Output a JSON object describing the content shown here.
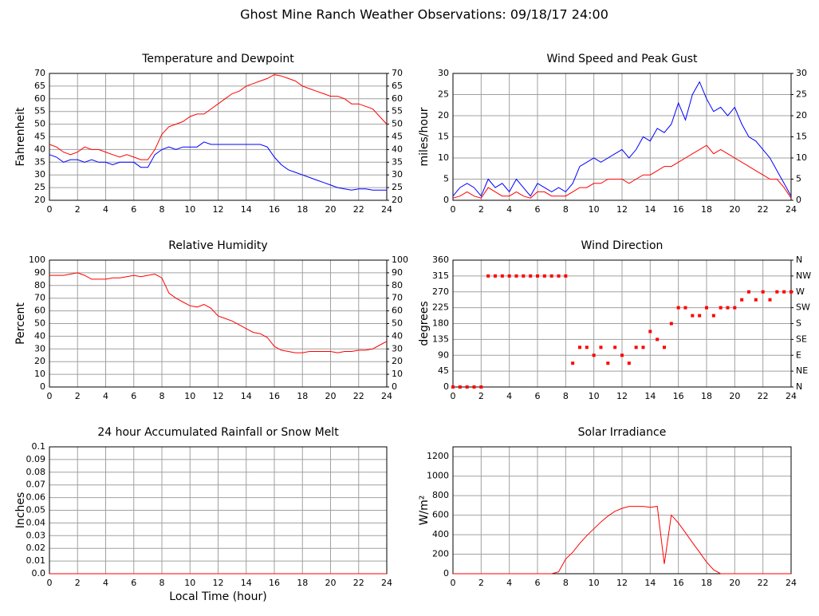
{
  "title": "Ghost Mine Ranch Weather Observations: 09/18/17 24:00",
  "chart_data": [
    {
      "type": "line",
      "title": "Temperature and Dewpoint",
      "ylabel": "Fahrenheit",
      "x": [
        0,
        0.5,
        1,
        1.5,
        2,
        2.5,
        3,
        3.5,
        4,
        4.5,
        5,
        5.5,
        6,
        6.5,
        7,
        7.5,
        8,
        8.5,
        9,
        9.5,
        10,
        10.5,
        11,
        11.5,
        12,
        12.5,
        13,
        13.5,
        14,
        14.5,
        15,
        15.5,
        16,
        16.5,
        17,
        17.5,
        18,
        18.5,
        19,
        19.5,
        20,
        20.5,
        21,
        21.5,
        22,
        22.5,
        23,
        23.5,
        24
      ],
      "xlim": [
        0,
        24
      ],
      "xticks": [
        0,
        2,
        4,
        6,
        8,
        10,
        12,
        14,
        16,
        18,
        20,
        22,
        24
      ],
      "ylim": [
        20,
        70
      ],
      "yticks": [
        20,
        25,
        30,
        35,
        40,
        45,
        50,
        55,
        60,
        65,
        70
      ],
      "y2lim": [
        20,
        70
      ],
      "y2ticks": [
        20,
        25,
        30,
        35,
        40,
        45,
        50,
        55,
        60,
        65,
        70
      ],
      "grid": true,
      "series": [
        {
          "color": "#ff0000",
          "values": [
            42,
            41,
            39,
            38,
            39,
            41,
            40,
            40,
            39,
            38,
            37,
            38,
            37,
            36,
            36,
            40,
            46,
            49,
            50,
            51,
            53,
            54,
            54,
            56,
            58,
            60,
            62,
            63,
            65,
            66,
            67,
            68,
            69.5,
            69,
            68,
            67,
            65,
            64,
            63,
            62,
            61,
            61,
            60,
            58,
            58,
            57,
            56,
            53,
            50
          ]
        },
        {
          "color": "#0000ff",
          "values": [
            38,
            37,
            35,
            36,
            36,
            35,
            36,
            35,
            35,
            34,
            35,
            35,
            35,
            33,
            33,
            38,
            40,
            41,
            40,
            41,
            41,
            41,
            43,
            42,
            42,
            42,
            42,
            42,
            42,
            42,
            42,
            41,
            37,
            34,
            32,
            31,
            30,
            29,
            28,
            27,
            26,
            25,
            24.5,
            24,
            24.5,
            24.5,
            24,
            24,
            24
          ]
        }
      ]
    },
    {
      "type": "line",
      "title": "Wind Speed and Peak Gust",
      "ylabel": "miles/hour",
      "x": [
        0,
        0.5,
        1,
        1.5,
        2,
        2.5,
        3,
        3.5,
        4,
        4.5,
        5,
        5.5,
        6,
        6.5,
        7,
        7.5,
        8,
        8.5,
        9,
        9.5,
        10,
        10.5,
        11,
        11.5,
        12,
        12.5,
        13,
        13.5,
        14,
        14.5,
        15,
        15.5,
        16,
        16.5,
        17,
        17.5,
        18,
        18.5,
        19,
        19.5,
        20,
        20.5,
        21,
        21.5,
        22,
        22.5,
        23,
        23.5,
        24
      ],
      "xlim": [
        0,
        24
      ],
      "xticks": [
        0,
        2,
        4,
        6,
        8,
        10,
        12,
        14,
        16,
        18,
        20,
        22,
        24
      ],
      "ylim": [
        0,
        30
      ],
      "yticks": [
        0,
        5,
        10,
        15,
        20,
        25,
        30
      ],
      "y2lim": [
        0,
        30
      ],
      "y2ticks": [
        0,
        5,
        10,
        15,
        20,
        25,
        30
      ],
      "grid": true,
      "series": [
        {
          "color": "#0000ff",
          "values": [
            1,
            3,
            4,
            3,
            1,
            5,
            3,
            4,
            2,
            5,
            3,
            1,
            4,
            3,
            2,
            3,
            2,
            4,
            8,
            9,
            10,
            9,
            10,
            11,
            12,
            10,
            12,
            15,
            14,
            17,
            16,
            18,
            23,
            19,
            25,
            28,
            24,
            21,
            22,
            20,
            22,
            18,
            15,
            14,
            12,
            10,
            7,
            4,
            1
          ]
        },
        {
          "color": "#ff0000",
          "values": [
            0.5,
            1,
            2,
            1,
            0.5,
            3,
            2,
            1,
            1,
            2,
            1,
            0.5,
            2,
            2,
            1,
            1,
            1,
            2,
            3,
            3,
            4,
            4,
            5,
            5,
            5,
            4,
            5,
            6,
            6,
            7,
            8,
            8,
            9,
            10,
            11,
            12,
            13,
            11,
            12,
            11,
            10,
            9,
            8,
            7,
            6,
            5,
            5,
            3,
            0.5
          ]
        }
      ]
    },
    {
      "type": "line",
      "title": "Relative Humidity",
      "ylabel": "Percent",
      "x": [
        0,
        0.5,
        1,
        1.5,
        2,
        2.5,
        3,
        3.5,
        4,
        4.5,
        5,
        5.5,
        6,
        6.5,
        7,
        7.5,
        8,
        8.5,
        9,
        9.5,
        10,
        10.5,
        11,
        11.5,
        12,
        12.5,
        13,
        13.5,
        14,
        14.5,
        15,
        15.5,
        16,
        16.5,
        17,
        17.5,
        18,
        18.5,
        19,
        19.5,
        20,
        20.5,
        21,
        21.5,
        22,
        22.5,
        23,
        23.5,
        24
      ],
      "xlim": [
        0,
        24
      ],
      "xticks": [
        0,
        2,
        4,
        6,
        8,
        10,
        12,
        14,
        16,
        18,
        20,
        22,
        24
      ],
      "ylim": [
        0,
        100
      ],
      "yticks": [
        0,
        10,
        20,
        30,
        40,
        50,
        60,
        70,
        80,
        90,
        100
      ],
      "y2lim": [
        0,
        100
      ],
      "y2ticks": [
        0,
        10,
        20,
        30,
        40,
        50,
        60,
        70,
        80,
        90,
        100
      ],
      "grid": true,
      "series": [
        {
          "color": "#ff0000",
          "values": [
            88,
            88,
            88,
            89,
            90,
            88,
            85,
            85,
            85,
            86,
            86,
            87,
            88,
            87,
            88,
            89,
            86,
            74,
            70,
            67,
            64,
            63,
            65,
            62,
            56,
            54,
            52,
            49,
            46,
            43,
            42,
            39,
            32,
            29,
            28,
            27,
            27,
            28,
            28,
            28,
            28,
            27,
            28,
            28,
            29,
            29,
            30,
            33,
            36
          ]
        }
      ]
    },
    {
      "type": "scatter",
      "title": "Wind Direction",
      "ylabel": "degrees",
      "x": [
        0,
        0.5,
        1,
        1.5,
        2,
        2.5,
        3,
        3.5,
        4,
        4.5,
        5,
        5.5,
        6,
        6.5,
        7,
        7.5,
        8,
        8.5,
        9,
        9.5,
        10,
        10.5,
        11,
        11.5,
        12,
        12.5,
        13,
        13.5,
        14,
        14.5,
        15,
        15.5,
        16,
        16.5,
        17,
        17.5,
        18,
        18.5,
        19,
        19.5,
        20,
        20.5,
        21,
        21.5,
        22,
        22.5,
        23,
        23.5,
        24
      ],
      "xlim": [
        0,
        24
      ],
      "xticks": [
        0,
        2,
        4,
        6,
        8,
        10,
        12,
        14,
        16,
        18,
        20,
        22,
        24
      ],
      "ylim": [
        0,
        360
      ],
      "yticks": [
        0,
        45,
        90,
        135,
        180,
        225,
        270,
        315,
        360
      ],
      "y2lim": [
        0,
        360
      ],
      "y2ticks": [
        {
          "value": 0,
          "label": "N"
        },
        {
          "value": 45,
          "label": "NE"
        },
        {
          "value": 90,
          "label": "E"
        },
        {
          "value": 135,
          "label": "SE"
        },
        {
          "value": 180,
          "label": "S"
        },
        {
          "value": 225,
          "label": "SW"
        },
        {
          "value": 270,
          "label": "W"
        },
        {
          "value": 315,
          "label": "NW"
        },
        {
          "value": 360,
          "label": "N"
        }
      ],
      "grid": true,
      "series": [
        {
          "color": "#ff0000",
          "values": [
            0,
            0,
            0,
            0,
            0,
            315,
            315,
            315,
            315,
            315,
            315,
            315,
            315,
            315,
            315,
            315,
            315,
            67.5,
            112.5,
            112.5,
            90,
            112.5,
            67.5,
            112.5,
            90,
            67.5,
            112.5,
            112.5,
            157.5,
            135,
            112.5,
            180,
            225,
            225,
            202.5,
            202.5,
            225,
            202.5,
            225,
            225,
            225,
            247.5,
            270,
            247.5,
            270,
            247.5,
            270,
            270,
            270
          ]
        }
      ]
    },
    {
      "type": "line",
      "title": "24 hour Accumulated Rainfall or Snow Melt",
      "ylabel": "Inches",
      "xlabel": "Local Time (hour)",
      "x": [
        0,
        24
      ],
      "xlim": [
        0,
        24
      ],
      "xticks": [
        0,
        2,
        4,
        6,
        8,
        10,
        12,
        14,
        16,
        18,
        20,
        22,
        24
      ],
      "ylim": [
        0,
        0.1
      ],
      "yticks": [
        {
          "value": 0,
          "label": "0.0"
        },
        0.01,
        0.02,
        0.03,
        0.04,
        0.05,
        0.06,
        0.07,
        0.08,
        0.09,
        0.1
      ],
      "grid": true,
      "series": [
        {
          "color": "#ff0000",
          "values": [
            0,
            0
          ]
        }
      ]
    },
    {
      "type": "line",
      "title": "Solar Irradiance",
      "ylabel": "W/m²",
      "x": [
        0,
        0.5,
        1,
        1.5,
        2,
        2.5,
        3,
        3.5,
        4,
        4.5,
        5,
        5.5,
        6,
        6.5,
        7,
        7.5,
        8,
        8.5,
        9,
        9.5,
        10,
        10.5,
        11,
        11.5,
        12,
        12.5,
        13,
        13.5,
        14,
        14.5,
        15,
        15.5,
        16,
        16.5,
        17,
        17.5,
        18,
        18.5,
        19,
        19.5,
        20,
        20.5,
        21,
        21.5,
        22,
        22.5,
        23,
        23.5,
        24
      ],
      "xlim": [
        0,
        24
      ],
      "xticks": [
        0,
        2,
        4,
        6,
        8,
        10,
        12,
        14,
        16,
        18,
        20,
        22,
        24
      ],
      "ylim": [
        0,
        1300
      ],
      "yticks": [
        0,
        200,
        400,
        600,
        800,
        1000,
        1200
      ],
      "grid": true,
      "series": [
        {
          "color": "#ff0000",
          "values": [
            0,
            0,
            0,
            0,
            0,
            0,
            0,
            0,
            0,
            0,
            0,
            0,
            0,
            0,
            0,
            20,
            150,
            220,
            310,
            390,
            460,
            530,
            590,
            640,
            670,
            690,
            690,
            690,
            680,
            690,
            100,
            600,
            520,
            420,
            320,
            220,
            120,
            40,
            0,
            0,
            0,
            0,
            0,
            0,
            0,
            0,
            0,
            0,
            0
          ]
        }
      ]
    }
  ]
}
